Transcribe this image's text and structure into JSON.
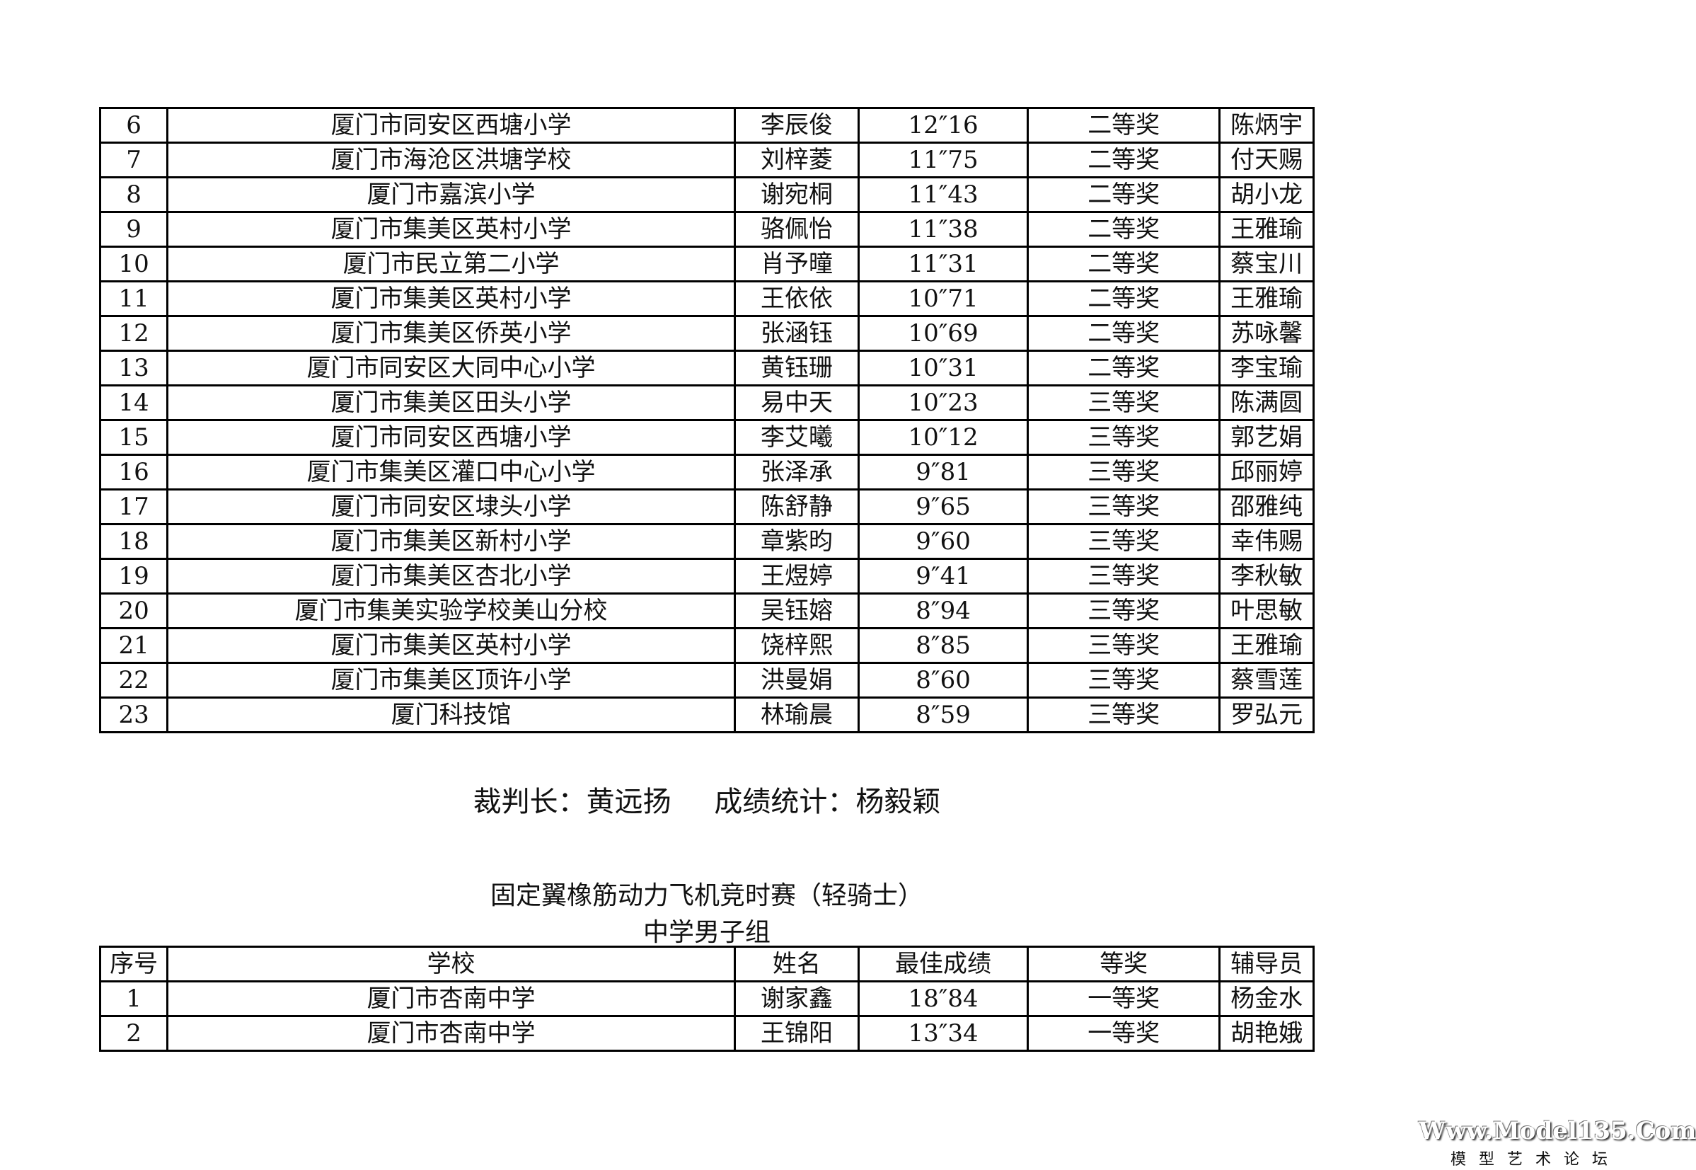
{
  "table1": {
    "rows": [
      [
        "6",
        "厦门市同安区西塘小学",
        "李辰俊",
        "12″16",
        "二等奖",
        "陈炳宇"
      ],
      [
        "7",
        "厦门市海沧区洪塘学校",
        "刘梓菱",
        "11″75",
        "二等奖",
        "付天赐"
      ],
      [
        "8",
        "厦门市嘉滨小学",
        "谢宛桐",
        "11″43",
        "二等奖",
        "胡小龙"
      ],
      [
        "9",
        "厦门市集美区英村小学",
        "骆佩怡",
        "11″38",
        "二等奖",
        "王雅瑜"
      ],
      [
        "10",
        "厦门市民立第二小学",
        "肖予曈",
        "11″31",
        "二等奖",
        "蔡宝川"
      ],
      [
        "11",
        "厦门市集美区英村小学",
        "王依依",
        "10″71",
        "二等奖",
        "王雅瑜"
      ],
      [
        "12",
        "厦门市集美区侨英小学",
        "张涵钰",
        "10″69",
        "二等奖",
        "苏咏馨"
      ],
      [
        "13",
        "厦门市同安区大同中心小学",
        "黄钰珊",
        "10″31",
        "二等奖",
        "李宝瑜"
      ],
      [
        "14",
        "厦门市集美区田头小学",
        "易中天",
        "10″23",
        "三等奖",
        "陈满圆"
      ],
      [
        "15",
        "厦门市同安区西塘小学",
        "李艾曦",
        "10″12",
        "三等奖",
        "郭艺娟"
      ],
      [
        "16",
        "厦门市集美区灌口中心小学",
        "张泽承",
        "9″81",
        "三等奖",
        "邱丽婷"
      ],
      [
        "17",
        "厦门市同安区埭头小学",
        "陈舒静",
        "9″65",
        "三等奖",
        "邵雅纯"
      ],
      [
        "18",
        "厦门市集美区新村小学",
        "章紫昀",
        "9″60",
        "三等奖",
        "幸伟赐"
      ],
      [
        "19",
        "厦门市集美区杏北小学",
        "王煜婷",
        "9″41",
        "三等奖",
        "李秋敏"
      ],
      [
        "20",
        "厦门市集美实验学校美山分校",
        "吴钰嫆",
        "8″94",
        "三等奖",
        "叶思敏"
      ],
      [
        "21",
        "厦门市集美区英村小学",
        "饶梓熙",
        "8″85",
        "三等奖",
        "王雅瑜"
      ],
      [
        "22",
        "厦门市集美区顶许小学",
        "洪曼娟",
        "8″60",
        "三等奖",
        "蔡雪莲"
      ],
      [
        "23",
        "厦门科技馆",
        "林瑜晨",
        "8″59",
        "三等奖",
        "罗弘元"
      ]
    ]
  },
  "officials": {
    "chief_judge": "裁判长：黄远扬",
    "statistician": "成绩统计：杨毅颖"
  },
  "section2": {
    "title": "固定翼橡筋动力飞机竞时赛（轻骑士）",
    "subtitle": "中学男子组",
    "headers": [
      "序号",
      "学校",
      "姓名",
      "最佳成绩",
      "等奖",
      "辅导员"
    ],
    "rows": [
      [
        "1",
        "厦门市杏南中学",
        "谢家鑫",
        "18″84",
        "一等奖",
        "杨金水"
      ],
      [
        "2",
        "厦门市杏南中学",
        "王锦阳",
        "13″34",
        "一等奖",
        "胡艳娥"
      ]
    ]
  },
  "watermark": {
    "site": "Www.Model135.Com",
    "name": "模型艺术论坛"
  }
}
